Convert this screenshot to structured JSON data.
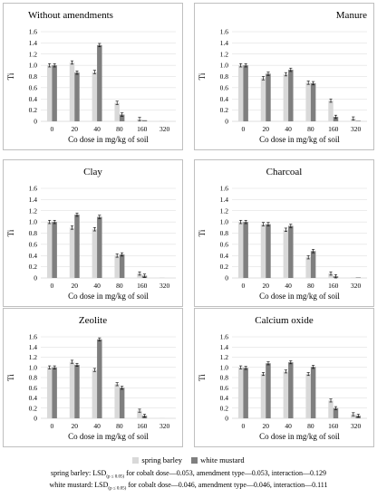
{
  "chart_data": [
    {
      "type": "bar",
      "title": "Without amendments",
      "xlabel": "Co dose in mg/kg of soil",
      "ylabel": "Ti",
      "ylim": [
        0,
        1.6
      ],
      "categories": [
        "0",
        "20",
        "40",
        "80",
        "160",
        "320"
      ],
      "series": [
        {
          "name": "spring barley",
          "values": [
            1.0,
            1.05,
            0.88,
            0.33,
            0.04,
            0.01
          ]
        },
        {
          "name": "white mustard",
          "values": [
            1.0,
            0.87,
            1.36,
            0.12,
            0.02,
            0.0
          ]
        }
      ]
    },
    {
      "type": "bar",
      "title": "Manure",
      "xlabel": "Co dose in mg/kg of soil",
      "ylabel": "Ti",
      "ylim": [
        0,
        1.6
      ],
      "categories": [
        "0",
        "20",
        "40",
        "80",
        "160",
        "320"
      ],
      "series": [
        {
          "name": "spring barley",
          "values": [
            1.0,
            0.77,
            0.84,
            0.69,
            0.37,
            0.05
          ]
        },
        {
          "name": "white mustard",
          "values": [
            1.0,
            0.85,
            0.92,
            0.68,
            0.08,
            0.01
          ]
        }
      ]
    },
    {
      "type": "bar",
      "title": "Clay",
      "xlabel": "Co dose in mg/kg of soil",
      "ylabel": "Ti",
      "ylim": [
        0,
        1.6
      ],
      "categories": [
        "0",
        "20",
        "40",
        "80",
        "160",
        "320"
      ],
      "series": [
        {
          "name": "spring barley",
          "values": [
            1.0,
            0.9,
            0.87,
            0.4,
            0.08,
            0.01
          ]
        },
        {
          "name": "white mustard",
          "values": [
            1.0,
            1.13,
            1.09,
            0.42,
            0.04,
            0.0
          ]
        }
      ]
    },
    {
      "type": "bar",
      "title": "Charcoal",
      "xlabel": "Co dose in mg/kg of soil",
      "ylabel": "Ti",
      "ylim": [
        0,
        1.6
      ],
      "categories": [
        "0",
        "20",
        "40",
        "80",
        "160",
        "320"
      ],
      "series": [
        {
          "name": "spring barley",
          "values": [
            1.0,
            0.96,
            0.86,
            0.37,
            0.08,
            0.01
          ]
        },
        {
          "name": "white mustard",
          "values": [
            1.0,
            0.96,
            0.93,
            0.48,
            0.03,
            0.01
          ]
        }
      ]
    },
    {
      "type": "bar",
      "title": "Zeolite",
      "xlabel": "Co dose in mg/kg of soil",
      "ylabel": "Ti",
      "ylim": [
        0,
        1.6
      ],
      "categories": [
        "0",
        "20",
        "40",
        "80",
        "160",
        "320"
      ],
      "series": [
        {
          "name": "spring barley",
          "values": [
            1.0,
            1.11,
            0.95,
            0.67,
            0.15,
            0.01
          ]
        },
        {
          "name": "white mustard",
          "values": [
            1.0,
            1.05,
            1.55,
            0.6,
            0.05,
            0.0
          ]
        }
      ]
    },
    {
      "type": "bar",
      "title": "Calcium oxide",
      "xlabel": "Co dose in mg/kg of soil",
      "ylabel": "Ti",
      "ylim": [
        0,
        1.6
      ],
      "categories": [
        "0",
        "20",
        "40",
        "80",
        "160",
        "320"
      ],
      "series": [
        {
          "name": "spring barley",
          "values": [
            1.0,
            0.87,
            0.92,
            0.87,
            0.35,
            0.08
          ]
        },
        {
          "name": "white mustard",
          "values": [
            0.99,
            1.08,
            1.1,
            1.01,
            0.2,
            0.05
          ]
        }
      ]
    }
  ],
  "yticks": [
    "0",
    "0.2",
    "0.4",
    "0.6",
    "0.8",
    "1.0",
    "1.2",
    "1.4",
    "1.6"
  ],
  "colors": {
    "spring_barley": "#d9d9d9",
    "white_mustard": "#7f7f7f",
    "border": "#bfbfbf",
    "grid": "#d9d9d9"
  },
  "legend": {
    "barley_label": "spring barley",
    "mustard_label": "white mustard"
  },
  "footer": {
    "line1_prefix": "spring barley: LSD",
    "line1_sub": "(p ≤ 0.05)",
    "line1_suffix": " for cobalt dose—0.053, amendment type—0.053, interaction—0.129",
    "line2_prefix": "white mustard: LSD",
    "line2_sub": "(p ≤ 0.05)",
    "line2_suffix": " for cobalt dose—0.046, amendment type—0.046, interaction—0.111"
  }
}
